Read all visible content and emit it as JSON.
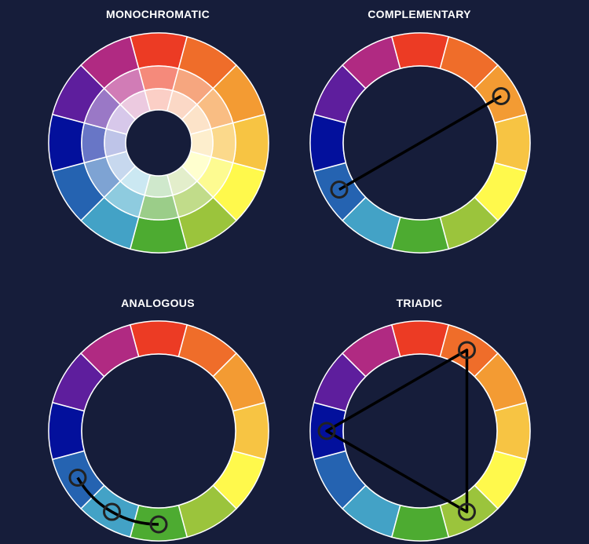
{
  "titles": {
    "monochromatic": "MONOCHROMATIC",
    "complementary": "COMPLEMENTARY",
    "analogous": "ANALOGOUS",
    "triadic": "TRIADIC"
  },
  "colors": {
    "background": "#161d3a",
    "hues": [
      "#ec3b24",
      "#ef6d2a",
      "#f39b33",
      "#f7c443",
      "#fff94c",
      "#9bc43c",
      "#4dab31",
      "#43a2c6",
      "#2563b1",
      "#03109c",
      "#5e1e9d",
      "#b02a82"
    ],
    "tints_outer": [
      "#f58a7b",
      "#f6a67f",
      "#f9bd83",
      "#fbd98b",
      "#fdfb91",
      "#c1dc8a",
      "#9bcd89",
      "#8ecbdf",
      "#7ea3d3",
      "#6876c6",
      "#9a78c6",
      "#d17cb6"
    ],
    "tints_inner": [
      "#fbcfc6",
      "#fbd8c6",
      "#fce3c9",
      "#fdeecd",
      "#ffffcf",
      "#e3eecb",
      "#cfe8cc",
      "#cbe8f2",
      "#c7d8ee",
      "#bec4e8",
      "#d7c8ea",
      "#eccae0"
    ],
    "marker": "#222222"
  },
  "diagrams": [
    {
      "key": "monochromatic",
      "type": "monochromatic",
      "points": []
    },
    {
      "key": "complementary",
      "type": "complementary",
      "points": [
        2,
        8
      ]
    },
    {
      "key": "analogous",
      "type": "analogous",
      "points": [
        8,
        7,
        6
      ]
    },
    {
      "key": "triadic",
      "type": "triadic",
      "points": [
        1,
        5,
        9
      ]
    }
  ]
}
